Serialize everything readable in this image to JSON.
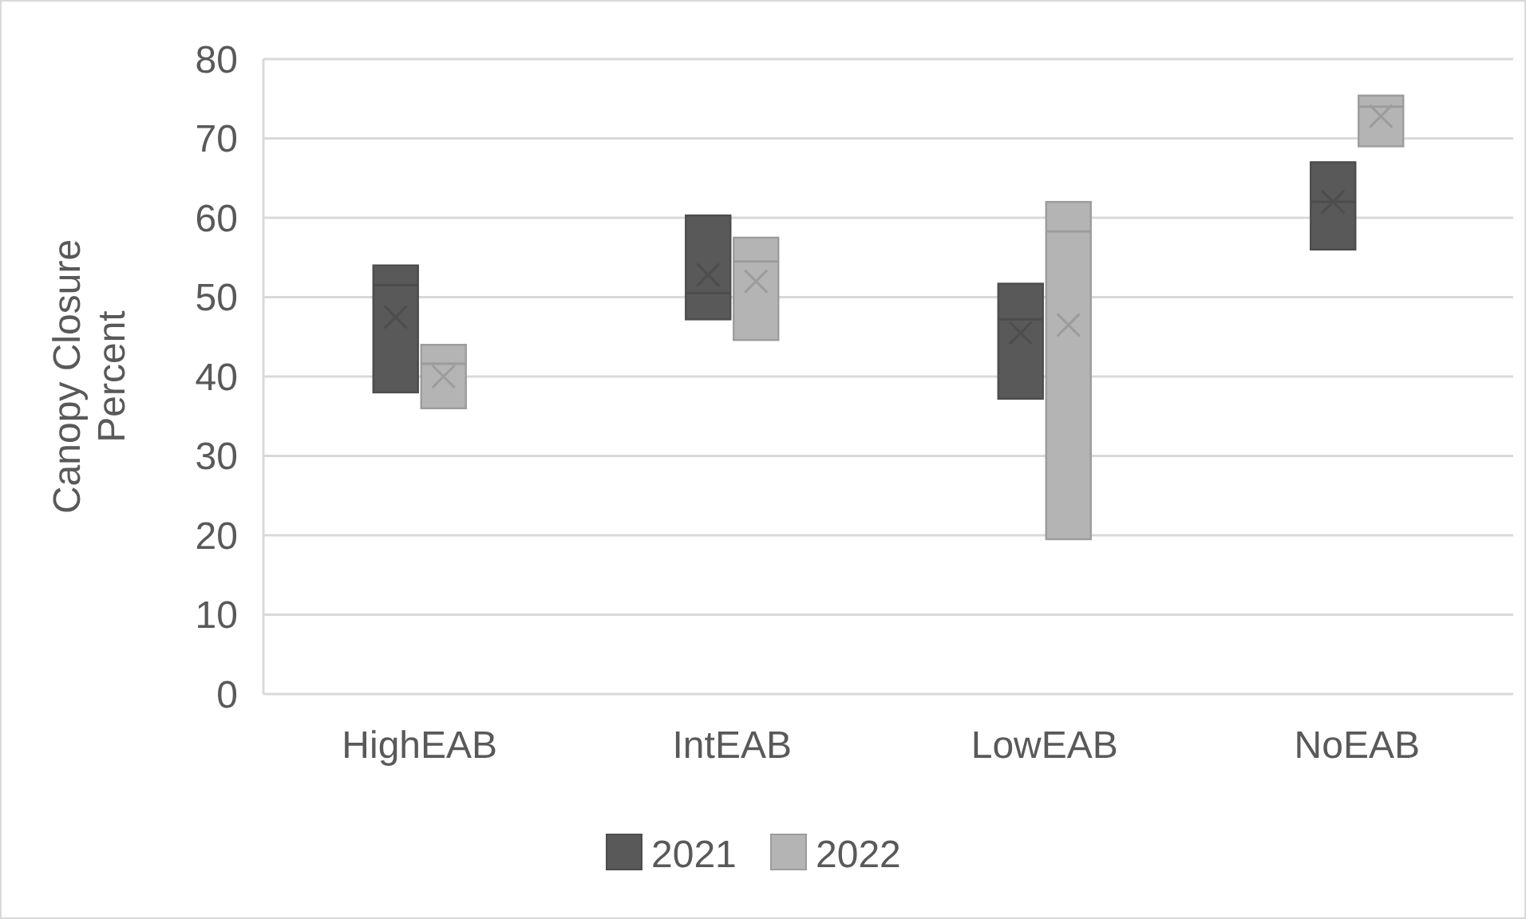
{
  "chart_data": {
    "type": "box",
    "ylabel": "Canopy Closure Percent",
    "categories": [
      "HighEAB",
      "IntEAB",
      "LowEAB",
      "NoEAB"
    ],
    "series": [
      {
        "name": "2021",
        "color": "#595959",
        "boxes": [
          {
            "low": 38,
            "q1": 38,
            "median": 51.5,
            "q3": 54,
            "high": 54,
            "mean": 47.5
          },
          {
            "low": 47.2,
            "q1": 47.2,
            "median": 50.5,
            "q3": 60.3,
            "high": 60.3,
            "mean": 52.8
          },
          {
            "low": 37.2,
            "q1": 37.2,
            "median": 47.2,
            "q3": 51.7,
            "high": 51.7,
            "mean": 45.5
          },
          {
            "low": 56,
            "q1": 56,
            "median": 62,
            "q3": 67,
            "high": 67,
            "mean": 62
          }
        ]
      },
      {
        "name": "2022",
        "color": "#b4b4b4",
        "boxes": [
          {
            "low": 36,
            "q1": 36,
            "median": 41.6,
            "q3": 44,
            "high": 44,
            "mean": 40
          },
          {
            "low": 44.6,
            "q1": 44.6,
            "median": 54.5,
            "q3": 57.5,
            "high": 57.5,
            "mean": 52
          },
          {
            "low": 19.5,
            "q1": 19.5,
            "median": 58.3,
            "q3": 62,
            "high": 62,
            "mean": 46.5
          },
          {
            "low": 69,
            "q1": 69,
            "median": 74,
            "q3": 75.4,
            "high": 75.4,
            "mean": 72.8
          }
        ]
      }
    ],
    "ylim": [
      0,
      80
    ],
    "yticks": [
      0,
      10,
      20,
      30,
      40,
      50,
      60,
      70,
      80
    ],
    "grid": "y",
    "legend": "bottom"
  }
}
